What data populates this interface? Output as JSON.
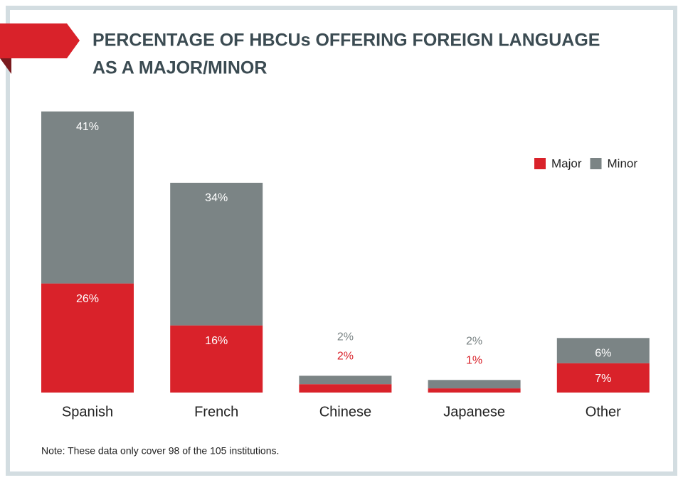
{
  "chart_data": {
    "type": "stacked-bar",
    "title": [
      "PERCENTAGE OF HBCUs OFFERING FOREIGN LANGUAGE",
      "AS A MAJOR/MINOR"
    ],
    "categories": [
      "Spanish",
      "French",
      "Chinese",
      "Japanese",
      "Other"
    ],
    "series": [
      {
        "name": "Major",
        "color": "#d9222a",
        "values": [
          26,
          16,
          2,
          1,
          7
        ],
        "value_labels": [
          "26%",
          "16%",
          "2%",
          "1%",
          "7%"
        ]
      },
      {
        "name": "Minor",
        "color": "#7b8485",
        "values": [
          41,
          34,
          2,
          2,
          6
        ],
        "value_labels": [
          "41%",
          "34%",
          "2%",
          "2%",
          "6%"
        ]
      }
    ],
    "note": "Note: These data only cover 98 of the 105 institutions."
  }
}
